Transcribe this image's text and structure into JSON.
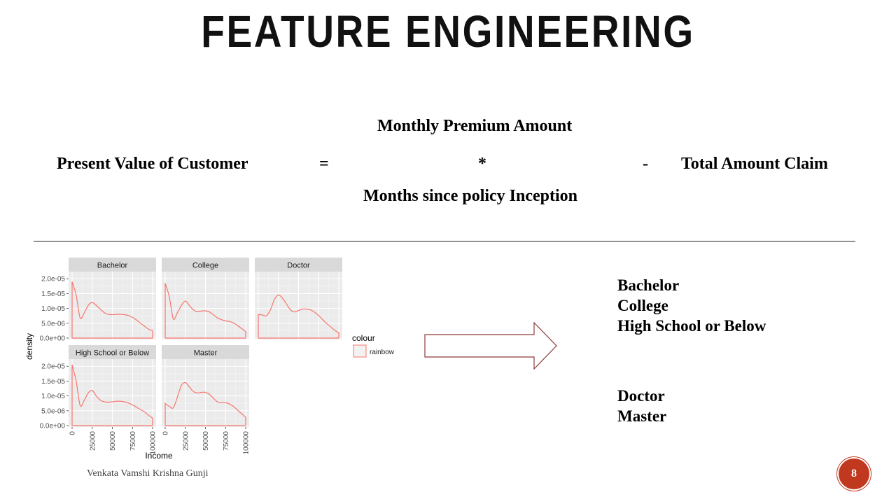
{
  "slide": {
    "title": "FEATURE ENGINEERING",
    "page_number": "8",
    "author": "Venkata Vamshi Krishna Gunji"
  },
  "formula": {
    "lhs": "Present Value of Customer",
    "equals": "=",
    "numerator": "Monthly Premium Amount",
    "operator_multiply": "*",
    "denominator": "Months since policy Inception",
    "operator_minus": "-",
    "rhs": "Total Amount Claim"
  },
  "groups": {
    "group_a": [
      "Bachelor",
      "College",
      "High School or Below"
    ],
    "group_b": [
      "Doctor",
      "Master"
    ]
  },
  "chart_data": {
    "type": "line",
    "title": "",
    "xlabel": "Income",
    "ylabel": "density",
    "xlim": [
      0,
      100000
    ],
    "ylim": [
      0,
      2.1e-05
    ],
    "x_ticks": [
      "0",
      "25000",
      "50000",
      "75000",
      "100000"
    ],
    "y_ticks": [
      "0.0e+00",
      "5.0e-06",
      "1.0e-05",
      "1.5e-05",
      "2.0e-05"
    ],
    "grid": true,
    "legend": {
      "title": "colour",
      "entries": [
        "rainbow"
      ],
      "placement": "right"
    },
    "line_color": "#f8766d",
    "x": [
      0,
      5000,
      10000,
      15000,
      20000,
      25000,
      30000,
      35000,
      40000,
      45000,
      50000,
      55000,
      60000,
      65000,
      70000,
      75000,
      80000,
      85000,
      90000,
      95000,
      100000
    ],
    "series": [
      {
        "name": "Bachelor",
        "values": [
          1.9e-05,
          1.45e-05,
          6.8e-06,
          8.5e-06,
          1.1e-05,
          1.2e-05,
          1.1e-05,
          9.8e-06,
          8.6e-06,
          8e-06,
          7.9e-06,
          8e-06,
          8e-06,
          7.9e-06,
          7.6e-06,
          7e-06,
          6.1e-06,
          5e-06,
          4e-06,
          3e-06,
          2.5e-06
        ]
      },
      {
        "name": "College",
        "values": [
          1.85e-05,
          1.4e-05,
          6.5e-06,
          8.5e-06,
          1.1e-05,
          1.25e-05,
          1.1e-05,
          9.5e-06,
          8.9e-06,
          9.1e-06,
          9.2e-06,
          8.8e-06,
          7.8e-06,
          6.8e-06,
          6.2e-06,
          5.8e-06,
          5.6e-06,
          5.1e-06,
          4.2e-06,
          3.2e-06,
          2.2e-06
        ]
      },
      {
        "name": "Doctor",
        "values": [
          8e-06,
          7.8e-06,
          7.5e-06,
          9.5e-06,
          1.3e-05,
          1.45e-05,
          1.35e-05,
          1.15e-05,
          9.5e-06,
          8.8e-06,
          9.3e-06,
          9.8e-06,
          9.8e-06,
          9.5e-06,
          8.7e-06,
          7.6e-06,
          6.2e-06,
          4.9e-06,
          3.8e-06,
          2.6e-06,
          1.8e-06
        ]
      },
      {
        "name": "High School or Below",
        "values": [
          2.05e-05,
          1.5e-05,
          6.8e-06,
          8.5e-06,
          1.1e-05,
          1.18e-05,
          1e-05,
          8.6e-06,
          8e-06,
          7.9e-06,
          8e-06,
          8.2e-06,
          8.2e-06,
          8e-06,
          7.6e-06,
          7e-06,
          6.2e-06,
          5.4e-06,
          4.6e-06,
          3.5e-06,
          2.5e-06
        ]
      },
      {
        "name": "Master",
        "values": [
          7.5e-06,
          6.5e-06,
          6e-06,
          9.5e-06,
          1.35e-05,
          1.45e-05,
          1.3e-05,
          1.15e-05,
          1.1e-05,
          1.12e-05,
          1.12e-05,
          1.05e-05,
          9.2e-06,
          8e-06,
          7.7e-06,
          7.7e-06,
          7.3e-06,
          6.4e-06,
          5.2e-06,
          4e-06,
          2.8e-06
        ]
      }
    ]
  }
}
